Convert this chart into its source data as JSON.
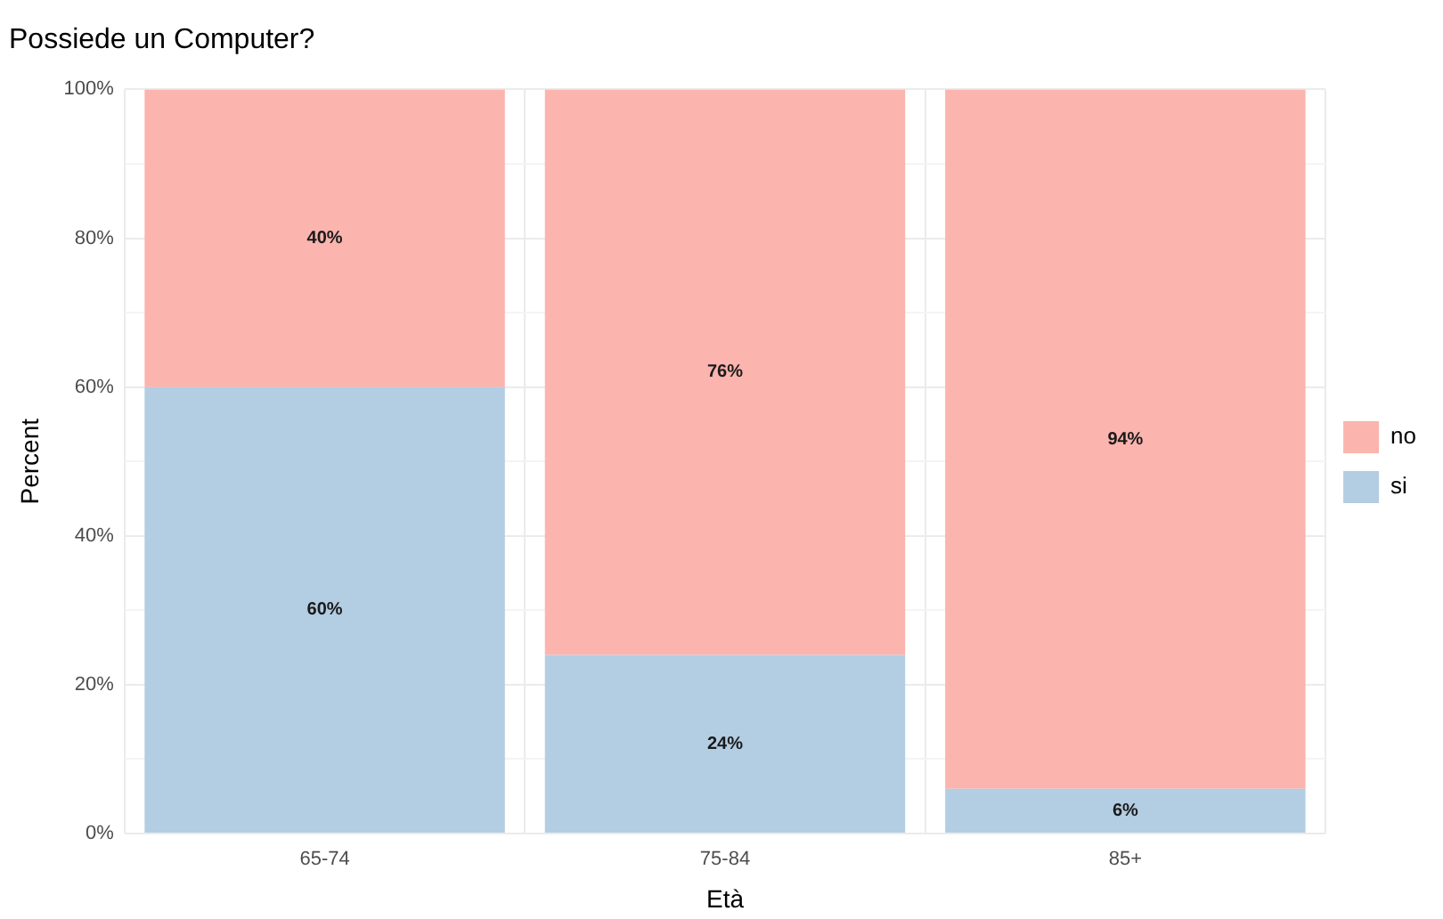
{
  "chart_data": {
    "type": "bar",
    "title": "Possiede un Computer?",
    "xlabel": "Età",
    "ylabel": "Percent",
    "categories": [
      "65-74",
      "75-84",
      "85+"
    ],
    "stacked": true,
    "series": [
      {
        "name": "si",
        "color": "#b3cde3",
        "values": [
          60,
          24,
          6
        ],
        "value_labels": [
          "60%",
          "24%",
          "6%"
        ]
      },
      {
        "name": "no",
        "color": "#fbb4ae",
        "values": [
          40,
          76,
          94
        ],
        "value_labels": [
          "40%",
          "76%",
          "94%"
        ]
      }
    ],
    "ylim": [
      0,
      100
    ],
    "yticks": [
      {
        "value": 0,
        "label": "0%"
      },
      {
        "value": 10,
        "label": null
      },
      {
        "value": 20,
        "label": "20%"
      },
      {
        "value": 30,
        "label": null
      },
      {
        "value": 40,
        "label": "40%"
      },
      {
        "value": 50,
        "label": null
      },
      {
        "value": 60,
        "label": "60%"
      },
      {
        "value": 70,
        "label": null
      },
      {
        "value": 80,
        "label": "80%"
      },
      {
        "value": 90,
        "label": null
      },
      {
        "value": 100,
        "label": "100%"
      }
    ],
    "grid": true,
    "legend": "right"
  }
}
